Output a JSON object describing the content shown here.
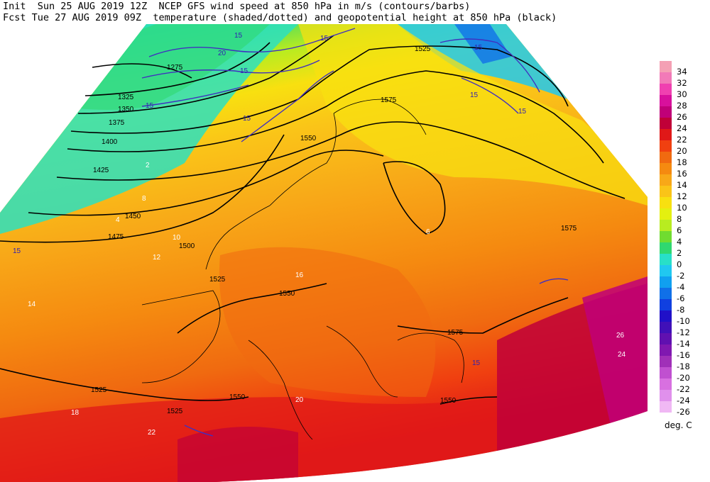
{
  "header": {
    "line1": "Init  Sun 25 AUG 2019 12Z  NCEP GFS wind speed at 850 hPa in m/s (contours/barbs)",
    "line2": "Fcst Tue 27 AUG 2019 09Z  temperature (shaded/dotted) and geopotential height at 850 hPa (black)"
  },
  "colorbar": {
    "units": "deg. C",
    "levels": [
      {
        "label": "34",
        "color": "#f4a0b4"
      },
      {
        "label": "32",
        "color": "#f27ab8"
      },
      {
        "label": "30",
        "color": "#f040b0"
      },
      {
        "label": "28",
        "color": "#d8109c"
      },
      {
        "label": "26",
        "color": "#c00078"
      },
      {
        "label": "24",
        "color": "#c00038"
      },
      {
        "label": "22",
        "color": "#e01818"
      },
      {
        "label": "20",
        "color": "#f04010"
      },
      {
        "label": "18",
        "color": "#f06a10"
      },
      {
        "label": "16",
        "color": "#f58a10"
      },
      {
        "label": "14",
        "color": "#f8a818"
      },
      {
        "label": "12",
        "color": "#fac418"
      },
      {
        "label": "10",
        "color": "#f8e010"
      },
      {
        "label": "8",
        "color": "#e4f010"
      },
      {
        "label": "6",
        "color": "#b8ec20"
      },
      {
        "label": "4",
        "color": "#70dc30"
      },
      {
        "label": "2",
        "color": "#30d870"
      },
      {
        "label": "0",
        "color": "#28e0c8"
      },
      {
        "label": "-2",
        "color": "#20c8f0"
      },
      {
        "label": "-4",
        "color": "#10a0f0"
      },
      {
        "label": "-6",
        "color": "#1070e8"
      },
      {
        "label": "-8",
        "color": "#1040e0"
      },
      {
        "label": "-10",
        "color": "#2010c8"
      },
      {
        "label": "-12",
        "color": "#4010b8"
      },
      {
        "label": "-14",
        "color": "#6010b0"
      },
      {
        "label": "-16",
        "color": "#8018b0"
      },
      {
        "label": "-18",
        "color": "#a030b8"
      },
      {
        "label": "-20",
        "color": "#c050d0"
      },
      {
        "label": "-22",
        "color": "#d870e0"
      },
      {
        "label": "-24",
        "color": "#e090ec"
      },
      {
        "label": "-26",
        "color": "#f0b8f4"
      }
    ]
  },
  "height_labels": [
    "1275",
    "1325",
    "1350",
    "1375",
    "1400",
    "1425",
    "1450",
    "1475",
    "1500",
    "1525",
    "1550",
    "1575",
    "1525",
    "1550",
    "1575",
    "1525",
    "1550",
    "1525",
    "1550",
    "1575"
  ],
  "wind_labels": [
    "15",
    "20",
    "15",
    "15",
    "15",
    "15",
    "15",
    "15",
    "15",
    "15",
    "15"
  ],
  "temp_labels": [
    "2",
    "4",
    "6",
    "8",
    "10",
    "12",
    "14",
    "16",
    "18",
    "20",
    "22",
    "24",
    "26"
  ]
}
